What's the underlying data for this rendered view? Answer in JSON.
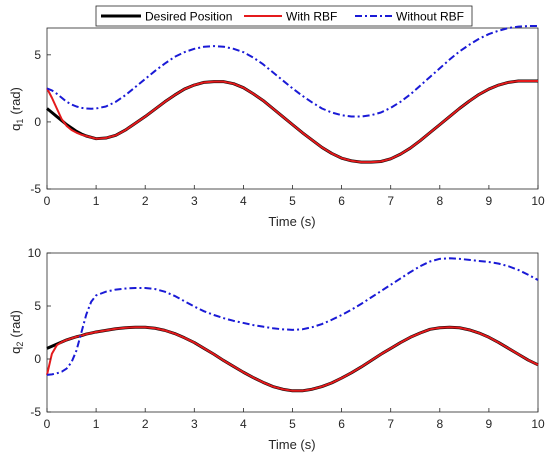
{
  "legend": {
    "placement": "top",
    "entries": [
      {
        "label": "Desired Position",
        "color": "#000000",
        "style": "solid"
      },
      {
        "label": "With RBF",
        "color": "#e41a1c",
        "style": "solid"
      },
      {
        "label": "Without RBF",
        "color": "#1a1ad6",
        "style": "dashdot"
      }
    ]
  },
  "chart_data": [
    {
      "type": "line",
      "xlabel": "Time (s)",
      "ylabel": "q",
      "ylabel_sub": "1",
      "ylabel_unit": "(rad)",
      "xlim": [
        0,
        10
      ],
      "ylim": [
        -5,
        7
      ],
      "xticks": [
        "0",
        "1",
        "2",
        "3",
        "4",
        "5",
        "6",
        "7",
        "8",
        "9",
        "10"
      ],
      "yticks": [
        -5,
        0,
        5
      ],
      "grid": false,
      "x": [
        0,
        0.1,
        0.2,
        0.3,
        0.4,
        0.5,
        0.6,
        0.7,
        0.8,
        0.9,
        1.0,
        1.2,
        1.4,
        1.6,
        1.8,
        2.0,
        2.2,
        2.4,
        2.6,
        2.8,
        3.0,
        3.2,
        3.4,
        3.6,
        3.8,
        4.0,
        4.2,
        4.4,
        4.6,
        4.8,
        5.0,
        5.2,
        5.4,
        5.6,
        5.8,
        6.0,
        6.2,
        6.4,
        6.6,
        6.8,
        7.0,
        7.2,
        7.4,
        7.6,
        7.8,
        8.0,
        8.2,
        8.4,
        8.6,
        8.8,
        9.0,
        9.2,
        9.4,
        9.6,
        9.8,
        10.0
      ],
      "series": [
        {
          "name": "Desired Position",
          "color": "#000000",
          "style": "solid",
          "values": [
            1.0,
            0.7,
            0.4,
            0.1,
            -0.2,
            -0.45,
            -0.7,
            -0.9,
            -1.05,
            -1.15,
            -1.25,
            -1.2,
            -1.0,
            -0.6,
            -0.1,
            0.4,
            0.95,
            1.5,
            2.0,
            2.45,
            2.75,
            2.95,
            3.0,
            3.0,
            2.85,
            2.55,
            2.1,
            1.6,
            1.0,
            0.4,
            -0.2,
            -0.8,
            -1.35,
            -1.9,
            -2.35,
            -2.7,
            -2.9,
            -3.0,
            -3.0,
            -2.95,
            -2.75,
            -2.4,
            -1.95,
            -1.4,
            -0.8,
            -0.2,
            0.4,
            1.0,
            1.55,
            2.05,
            2.45,
            2.75,
            2.95,
            3.05,
            3.05,
            3.05
          ]
        },
        {
          "name": "With RBF",
          "color": "#e41a1c",
          "style": "solid",
          "values": [
            2.5,
            1.8,
            1.0,
            0.2,
            -0.3,
            -0.6,
            -0.8,
            -0.95,
            -1.05,
            -1.15,
            -1.25,
            -1.2,
            -1.0,
            -0.6,
            -0.1,
            0.4,
            0.95,
            1.5,
            2.0,
            2.45,
            2.75,
            2.95,
            3.0,
            3.0,
            2.85,
            2.55,
            2.1,
            1.6,
            1.0,
            0.4,
            -0.2,
            -0.8,
            -1.35,
            -1.9,
            -2.35,
            -2.7,
            -2.9,
            -3.0,
            -3.0,
            -2.95,
            -2.75,
            -2.4,
            -1.95,
            -1.4,
            -0.8,
            -0.2,
            0.4,
            1.0,
            1.55,
            2.05,
            2.45,
            2.75,
            2.95,
            3.05,
            3.05,
            3.05
          ]
        },
        {
          "name": "Without RBF",
          "color": "#1a1ad6",
          "style": "dashdot",
          "values": [
            2.5,
            2.35,
            2.1,
            1.8,
            1.5,
            1.3,
            1.15,
            1.05,
            1.0,
            0.98,
            1.0,
            1.15,
            1.5,
            2.0,
            2.6,
            3.2,
            3.8,
            4.35,
            4.85,
            5.2,
            5.45,
            5.6,
            5.65,
            5.6,
            5.45,
            5.2,
            4.8,
            4.3,
            3.7,
            3.1,
            2.5,
            1.95,
            1.45,
            1.0,
            0.7,
            0.5,
            0.4,
            0.4,
            0.5,
            0.7,
            1.05,
            1.5,
            2.05,
            2.7,
            3.35,
            4.0,
            4.65,
            5.25,
            5.75,
            6.2,
            6.55,
            6.8,
            7.0,
            7.1,
            7.15,
            7.15
          ]
        }
      ]
    },
    {
      "type": "line",
      "xlabel": "Time (s)",
      "ylabel": "q",
      "ylabel_sub": "2",
      "ylabel_unit": "(rad)",
      "xlim": [
        0,
        10
      ],
      "ylim": [
        -5,
        10
      ],
      "xticks": [
        "0",
        "1",
        "2",
        "3",
        "4",
        "5",
        "6",
        "7",
        "8",
        "9",
        "10"
      ],
      "yticks": [
        -5,
        0,
        5,
        10
      ],
      "grid": false,
      "x": [
        0,
        0.1,
        0.2,
        0.3,
        0.4,
        0.5,
        0.6,
        0.7,
        0.8,
        0.9,
        1.0,
        1.2,
        1.4,
        1.6,
        1.8,
        2.0,
        2.2,
        2.4,
        2.6,
        2.8,
        3.0,
        3.2,
        3.4,
        3.6,
        3.8,
        4.0,
        4.2,
        4.4,
        4.6,
        4.8,
        5.0,
        5.2,
        5.4,
        5.6,
        5.8,
        6.0,
        6.2,
        6.4,
        6.6,
        6.8,
        7.0,
        7.2,
        7.4,
        7.6,
        7.8,
        8.0,
        8.2,
        8.4,
        8.6,
        8.8,
        9.0,
        9.2,
        9.4,
        9.6,
        9.8,
        10.0
      ],
      "series": [
        {
          "name": "Desired Position",
          "color": "#000000",
          "style": "solid",
          "values": [
            1.0,
            1.2,
            1.4,
            1.6,
            1.8,
            1.95,
            2.1,
            2.2,
            2.35,
            2.45,
            2.55,
            2.7,
            2.85,
            2.95,
            3.0,
            3.0,
            2.9,
            2.7,
            2.4,
            2.0,
            1.55,
            1.0,
            0.45,
            -0.15,
            -0.7,
            -1.25,
            -1.75,
            -2.2,
            -2.6,
            -2.85,
            -3.0,
            -3.0,
            -2.85,
            -2.6,
            -2.25,
            -1.8,
            -1.3,
            -0.75,
            -0.15,
            0.45,
            1.0,
            1.55,
            2.05,
            2.45,
            2.8,
            2.95,
            3.0,
            2.95,
            2.75,
            2.45,
            2.05,
            1.55,
            1.0,
            0.45,
            -0.1,
            -0.55
          ]
        },
        {
          "name": "With RBF",
          "color": "#e41a1c",
          "style": "solid",
          "values": [
            -1.5,
            0.5,
            1.3,
            1.6,
            1.8,
            1.95,
            2.1,
            2.2,
            2.35,
            2.45,
            2.55,
            2.7,
            2.85,
            2.95,
            3.0,
            3.0,
            2.9,
            2.7,
            2.4,
            2.0,
            1.55,
            1.0,
            0.45,
            -0.15,
            -0.7,
            -1.25,
            -1.75,
            -2.2,
            -2.6,
            -2.85,
            -3.0,
            -3.0,
            -2.85,
            -2.6,
            -2.25,
            -1.8,
            -1.3,
            -0.75,
            -0.15,
            0.45,
            1.0,
            1.55,
            2.05,
            2.45,
            2.8,
            2.95,
            3.0,
            2.95,
            2.75,
            2.45,
            2.05,
            1.55,
            1.0,
            0.45,
            -0.1,
            -0.55
          ]
        },
        {
          "name": "Without RBF",
          "color": "#1a1ad6",
          "style": "dashdot",
          "values": [
            -1.5,
            -1.45,
            -1.35,
            -1.2,
            -0.9,
            -0.3,
            0.8,
            2.5,
            4.2,
            5.4,
            6.0,
            6.35,
            6.55,
            6.65,
            6.7,
            6.7,
            6.6,
            6.35,
            5.95,
            5.45,
            4.95,
            4.5,
            4.15,
            3.85,
            3.6,
            3.4,
            3.2,
            3.05,
            2.9,
            2.8,
            2.75,
            2.8,
            3.0,
            3.3,
            3.7,
            4.15,
            4.65,
            5.2,
            5.8,
            6.4,
            7.0,
            7.6,
            8.2,
            8.75,
            9.2,
            9.45,
            9.5,
            9.45,
            9.35,
            9.25,
            9.15,
            9.0,
            8.75,
            8.4,
            7.95,
            7.45
          ]
        }
      ]
    }
  ]
}
